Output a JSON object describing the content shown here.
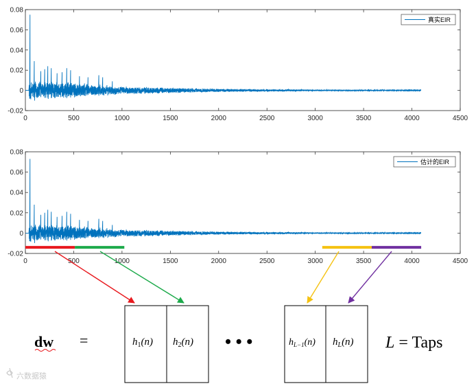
{
  "chart_data": [
    {
      "type": "line",
      "title": "",
      "xlabel": "",
      "ylabel": "",
      "xlim": [
        0,
        4500
      ],
      "ylim": [
        -0.02,
        0.08
      ],
      "x_ticks": [
        0,
        500,
        1000,
        1500,
        2000,
        2500,
        3000,
        3500,
        4000,
        4500
      ],
      "y_ticks": [
        -0.02,
        0,
        0.02,
        0.04,
        0.06,
        0.08
      ],
      "x_tick_labels": [
        "0",
        "500",
        "1000",
        "1500",
        "2000",
        "2500",
        "3000",
        "3500",
        "4000",
        "4500"
      ],
      "y_tick_labels": [
        "-0.02",
        "0",
        "0.02",
        "0.04",
        "0.06",
        "0.08"
      ],
      "legend": {
        "label": "真实EIR",
        "position": "top-right"
      },
      "series": [
        {
          "name": "真实EIR",
          "color": "#0072BD",
          "length": 4096,
          "main_peak": {
            "x": 50,
            "y": 0.075
          },
          "early_reflections": [
            {
              "x": 95,
              "y": 0.029
            },
            {
              "x": 160,
              "y": 0.019
            },
            {
              "x": 200,
              "y": 0.021
            },
            {
              "x": 235,
              "y": 0.024
            },
            {
              "x": 270,
              "y": 0.022
            },
            {
              "x": 330,
              "y": 0.017
            },
            {
              "x": 380,
              "y": 0.018
            },
            {
              "x": 430,
              "y": 0.022
            },
            {
              "x": 470,
              "y": 0.02
            },
            {
              "x": 560,
              "y": 0.014
            },
            {
              "x": 650,
              "y": 0.013
            },
            {
              "x": 760,
              "y": 0.015
            },
            {
              "x": 800,
              "y": 0.013
            },
            {
              "x": 900,
              "y": 0.009
            }
          ],
          "noise_envelope": [
            {
              "x": 100,
              "amp": 0.01
            },
            {
              "x": 500,
              "amp": 0.008
            },
            {
              "x": 1000,
              "amp": 0.004
            },
            {
              "x": 2000,
              "amp": 0.0018
            },
            {
              "x": 3000,
              "amp": 0.0009
            },
            {
              "x": 4096,
              "amp": 0.0004
            }
          ]
        }
      ]
    },
    {
      "type": "line",
      "title": "",
      "xlabel": "",
      "ylabel": "",
      "xlim": [
        0,
        4500
      ],
      "ylim": [
        -0.02,
        0.08
      ],
      "x_ticks": [
        0,
        500,
        1000,
        1500,
        2000,
        2500,
        3000,
        3500,
        4000,
        4500
      ],
      "y_ticks": [
        -0.02,
        0,
        0.02,
        0.04,
        0.06,
        0.08
      ],
      "x_tick_labels": [
        "0",
        "500",
        "1000",
        "1500",
        "2000",
        "2500",
        "3000",
        "3500",
        "4000",
        "4500"
      ],
      "y_tick_labels": [
        "-0.02",
        "0",
        "0.02",
        "0.04",
        "0.06",
        "0.08"
      ],
      "legend": {
        "label": "估计的EIR",
        "position": "top-right"
      },
      "series": [
        {
          "name": "估计的EIR",
          "color": "#0072BD",
          "length": 4096,
          "main_peak": {
            "x": 50,
            "y": 0.073
          },
          "early_reflections": [
            {
              "x": 95,
              "y": 0.028
            },
            {
              "x": 160,
              "y": 0.018
            },
            {
              "x": 200,
              "y": 0.02
            },
            {
              "x": 235,
              "y": 0.023
            },
            {
              "x": 270,
              "y": 0.021
            },
            {
              "x": 330,
              "y": 0.016
            },
            {
              "x": 380,
              "y": 0.017
            },
            {
              "x": 430,
              "y": 0.021
            },
            {
              "x": 470,
              "y": 0.019
            },
            {
              "x": 560,
              "y": 0.013
            },
            {
              "x": 650,
              "y": 0.012
            },
            {
              "x": 760,
              "y": 0.014
            },
            {
              "x": 800,
              "y": 0.012
            },
            {
              "x": 900,
              "y": 0.008
            }
          ],
          "noise_envelope": [
            {
              "x": 100,
              "amp": 0.0095
            },
            {
              "x": 500,
              "amp": 0.0075
            },
            {
              "x": 1000,
              "amp": 0.0038
            },
            {
              "x": 2000,
              "amp": 0.0017
            },
            {
              "x": 3000,
              "amp": 0.0008
            },
            {
              "x": 4096,
              "amp": 0.0004
            }
          ]
        }
      ],
      "segments": [
        {
          "name": "h1",
          "x_start": 0,
          "x_end": 512,
          "color": "#E8191E"
        },
        {
          "name": "h2",
          "x_start": 512,
          "x_end": 1024,
          "color": "#1DAA4B"
        },
        {
          "name": "hL-1",
          "x_start": 3072,
          "x_end": 3584,
          "color": "#F5C211"
        },
        {
          "name": "hL",
          "x_start": 3584,
          "x_end": 4096,
          "color": "#7030A0"
        }
      ]
    }
  ],
  "equation": {
    "lhs": "dw",
    "equals": "=",
    "ellipsis": "• • •",
    "blocks": [
      {
        "h": "h",
        "sub": "1",
        "arg": "(n)"
      },
      {
        "h": "h",
        "sub": "2",
        "arg": "(n)"
      },
      {
        "h": "h",
        "sub": "L−1",
        "arg": "(n)"
      },
      {
        "h": "h",
        "sub": "L",
        "arg": "(n)"
      }
    ],
    "taps_var": "L",
    "taps_eq": " = Taps"
  },
  "watermark": "六数据猿"
}
